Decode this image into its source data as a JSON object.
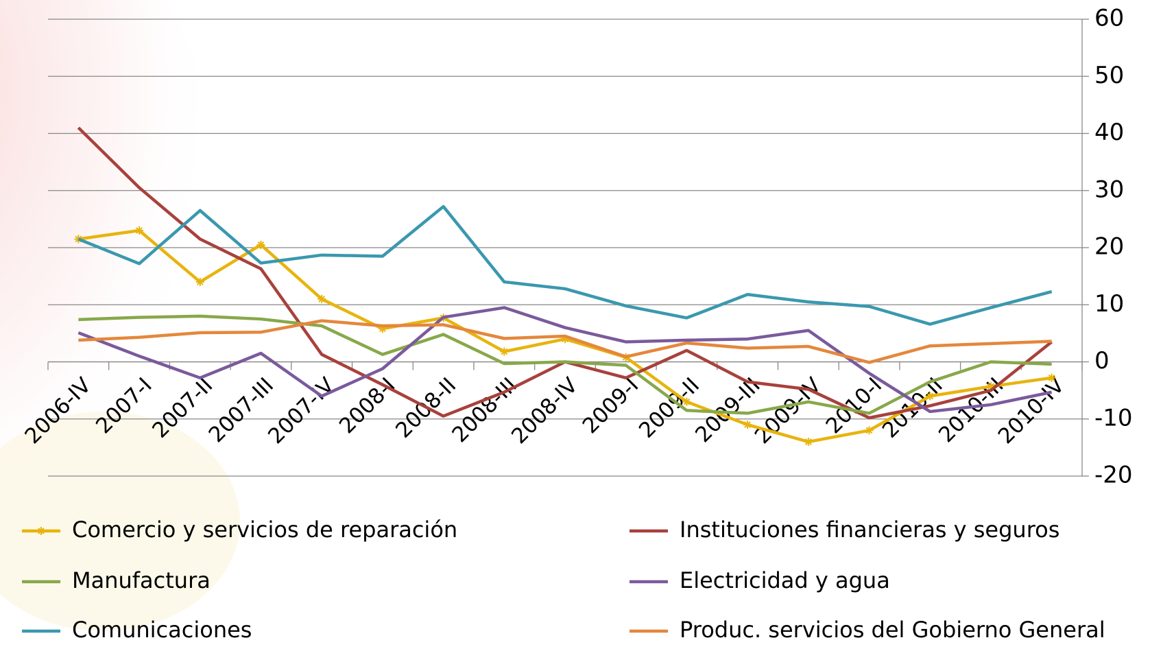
{
  "chart_data": {
    "type": "line",
    "categories": [
      "2006-IV",
      "2007-I",
      "2007-II",
      "2007-III",
      "2007-IV",
      "2008-I",
      "2008-II",
      "2008-III",
      "2008-IV",
      "2009-I",
      "2009-II",
      "2009-III",
      "2009-IV",
      "2010-I",
      "2010-II",
      "2010-III",
      "2010-IV"
    ],
    "series": [
      {
        "name": "Comercio y servicios de reparación",
        "color": "#e8b40c",
        "marker": "star",
        "values": [
          21.5,
          23,
          14,
          20.5,
          11,
          5.8,
          7.7,
          1.8,
          4,
          0.8,
          -7,
          -11,
          -14,
          -12,
          -6,
          -4.3,
          -2.8
        ]
      },
      {
        "name": "Instituciones financieras y seguros",
        "color": "#a8413c",
        "values": [
          41,
          30.5,
          21.5,
          16.3,
          1.3,
          -4,
          -9.5,
          -5.3,
          0,
          -2.8,
          2,
          -3.5,
          -4.8,
          -9.8,
          -7.7,
          -5,
          3.5
        ]
      },
      {
        "name": "Manufactura",
        "color": "#88a84a",
        "values": [
          7.4,
          7.8,
          8,
          7.5,
          6.3,
          1.3,
          4.8,
          -0.3,
          0,
          -0.6,
          -8.5,
          -9,
          -7,
          -9,
          -3.5,
          0,
          -0.4
        ]
      },
      {
        "name": "Electricidad y agua",
        "color": "#7a5a9c",
        "values": [
          5.1,
          1,
          -2.8,
          1.5,
          -6,
          -1.2,
          7.8,
          9.5,
          6,
          3.5,
          3.8,
          4,
          5.5,
          -2,
          -8.7,
          -7.5,
          -5.3
        ]
      },
      {
        "name": "Comunicaciones",
        "color": "#3a98ae",
        "values": [
          21.5,
          17.2,
          26.5,
          17.3,
          18.7,
          18.5,
          27.2,
          14,
          12.8,
          9.8,
          7.7,
          11.8,
          10.5,
          9.7,
          6.6,
          9.5,
          12.3
        ]
      },
      {
        "name": "Produc. servicios del Gobierno General",
        "color": "#e4873c",
        "values": [
          3.8,
          4.3,
          5.1,
          5.2,
          7.2,
          6.3,
          6.5,
          4.1,
          4.5,
          0.9,
          3.3,
          2.4,
          2.7,
          -0.1,
          2.8,
          3.2,
          3.6
        ]
      }
    ],
    "ylim": [
      -20,
      60
    ],
    "yticks": [
      -20,
      -10,
      0,
      10,
      20,
      30,
      40,
      50,
      60
    ],
    "grid": true,
    "legend": "bottom"
  }
}
